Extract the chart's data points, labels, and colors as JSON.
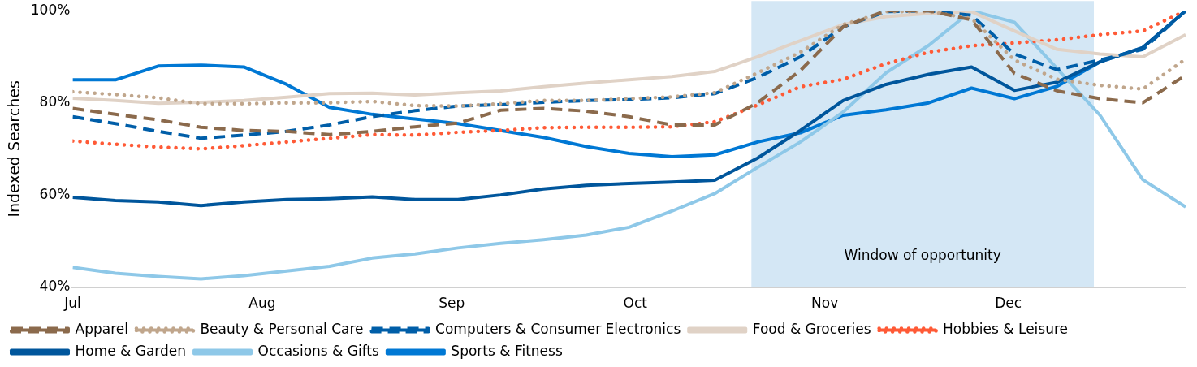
{
  "chart_data": {
    "type": "line",
    "ylabel": "Indexed Searches",
    "x": [
      "--07-01",
      "--07-08",
      "--07-15",
      "--07-22",
      "--07-29",
      "--08-05",
      "--08-12",
      "--08-19",
      "--08-26",
      "--09-02",
      "--09-09",
      "--09-16",
      "--09-23",
      "--09-30",
      "--10-07",
      "--10-14",
      "--10-21",
      "--10-28",
      "--11-04",
      "--11-11",
      "--11-18",
      "--11-25",
      "--12-02",
      "--12-09",
      "--12-16",
      "--12-23",
      "--12-30"
    ],
    "xlim": [
      "--07-01",
      "--12-30"
    ],
    "xticks": [
      {
        "value": "--07-01",
        "label": "Jul"
      },
      {
        "value": "--08-01",
        "label": "Aug"
      },
      {
        "value": "--09-01",
        "label": "Sep"
      },
      {
        "value": "--10-01",
        "label": "Oct"
      },
      {
        "value": "--11-01",
        "label": "Nov"
      },
      {
        "value": "--12-01",
        "label": "Dec"
      }
    ],
    "ylim": [
      40,
      100
    ],
    "yticks": [
      {
        "value": 40,
        "label": "40%"
      },
      {
        "value": 60,
        "label": "60%"
      },
      {
        "value": 80,
        "label": "80%"
      },
      {
        "value": 100,
        "label": "100%"
      }
    ],
    "grid": false,
    "legend": "bottom",
    "marker": "none",
    "bands": [
      {
        "axis": "x",
        "from": "--10-20",
        "to": "--12-15",
        "label": "Window of opportunity",
        "color": "#d4e7f5"
      }
    ],
    "series": [
      {
        "name": "Apparel",
        "color": "#8b6a4c",
        "line_style": "dashed",
        "values": [
          78.8,
          77.5,
          76.3,
          74.7,
          74,
          73.8,
          73.1,
          73.8,
          74.8,
          75.6,
          78.4,
          78.8,
          78.2,
          77,
          75.2,
          75.2,
          80,
          87,
          96.5,
          100,
          100,
          98,
          86.4,
          82.6,
          80.9,
          80,
          86
        ]
      },
      {
        "name": "Beauty & Personal Care",
        "color": "#c0a68c",
        "line_style": "dotted",
        "values": [
          82.4,
          81.8,
          81.1,
          79.8,
          79.8,
          80,
          80,
          80.3,
          79.4,
          79.3,
          79.8,
          80.5,
          80.5,
          80.9,
          81.3,
          82.2,
          86.5,
          91,
          97,
          99.8,
          99.8,
          98.3,
          89.3,
          85.1,
          83.8,
          83,
          89.5
        ]
      },
      {
        "name": "Computers & Consumer Electronics",
        "color": "#005ea8",
        "line_style": "dashed",
        "values": [
          77,
          75.5,
          73.8,
          72.3,
          73,
          73.8,
          75.2,
          77,
          78.3,
          79.3,
          79.6,
          80.1,
          80.5,
          80.7,
          81.1,
          82,
          85.5,
          90,
          96.5,
          99.8,
          100,
          99,
          90.6,
          87.2,
          89.3,
          91.6,
          100
        ]
      },
      {
        "name": "Food & Groceries",
        "color": "#e0d2c6",
        "line_style": "solid",
        "values": [
          81,
          80.5,
          79.9,
          80.1,
          80.5,
          81.2,
          82,
          82.1,
          81.7,
          82.2,
          82.6,
          83.5,
          84.3,
          85,
          85.7,
          86.8,
          90,
          93.5,
          97,
          98.7,
          99.4,
          99.8,
          95.6,
          91.6,
          90.6,
          90,
          94.8
        ]
      },
      {
        "name": "Hobbies & Leisure",
        "color": "#ff5a36",
        "line_style": "dotted",
        "values": [
          71.7,
          71,
          70.4,
          70,
          70.7,
          71.5,
          72.3,
          73.1,
          73,
          73.6,
          74,
          74.6,
          74.7,
          74.7,
          74.8,
          75.9,
          79.5,
          83.5,
          85.1,
          88.5,
          91,
          92.4,
          93,
          93.7,
          94.8,
          95.6,
          100
        ]
      },
      {
        "name": "Home & Garden",
        "color": "#00569c",
        "line_style": "solid",
        "values": [
          59.5,
          58.8,
          58.5,
          57.7,
          58.5,
          59,
          59.2,
          59.6,
          59,
          59,
          60,
          61.3,
          62.1,
          62.5,
          62.8,
          63.2,
          68,
          74,
          80.5,
          84,
          86.2,
          87.8,
          82.7,
          84.5,
          88.9,
          92,
          100
        ]
      },
      {
        "name": "Occasions & Gifts",
        "color": "#8ec8e8",
        "line_style": "solid",
        "values": [
          44.3,
          43,
          42.3,
          41.8,
          42.5,
          43.5,
          44.5,
          46.3,
          47.2,
          48.5,
          49.5,
          50.3,
          51.3,
          53,
          56.5,
          60.3,
          66,
          71.5,
          78,
          86.5,
          92.5,
          100,
          97.5,
          87.4,
          77.3,
          63.3,
          57.4
        ]
      },
      {
        "name": "Sports & Fitness",
        "color": "#0078d4",
        "line_style": "solid",
        "values": [
          85,
          85,
          88,
          88.2,
          87.8,
          84,
          79,
          77.5,
          76.5,
          75.5,
          74,
          72.5,
          70.5,
          69,
          68.3,
          68.7,
          71.5,
          73.5,
          77.3,
          78.5,
          80,
          83.2,
          80.9,
          83.6,
          88.9,
          92,
          100
        ]
      }
    ]
  }
}
